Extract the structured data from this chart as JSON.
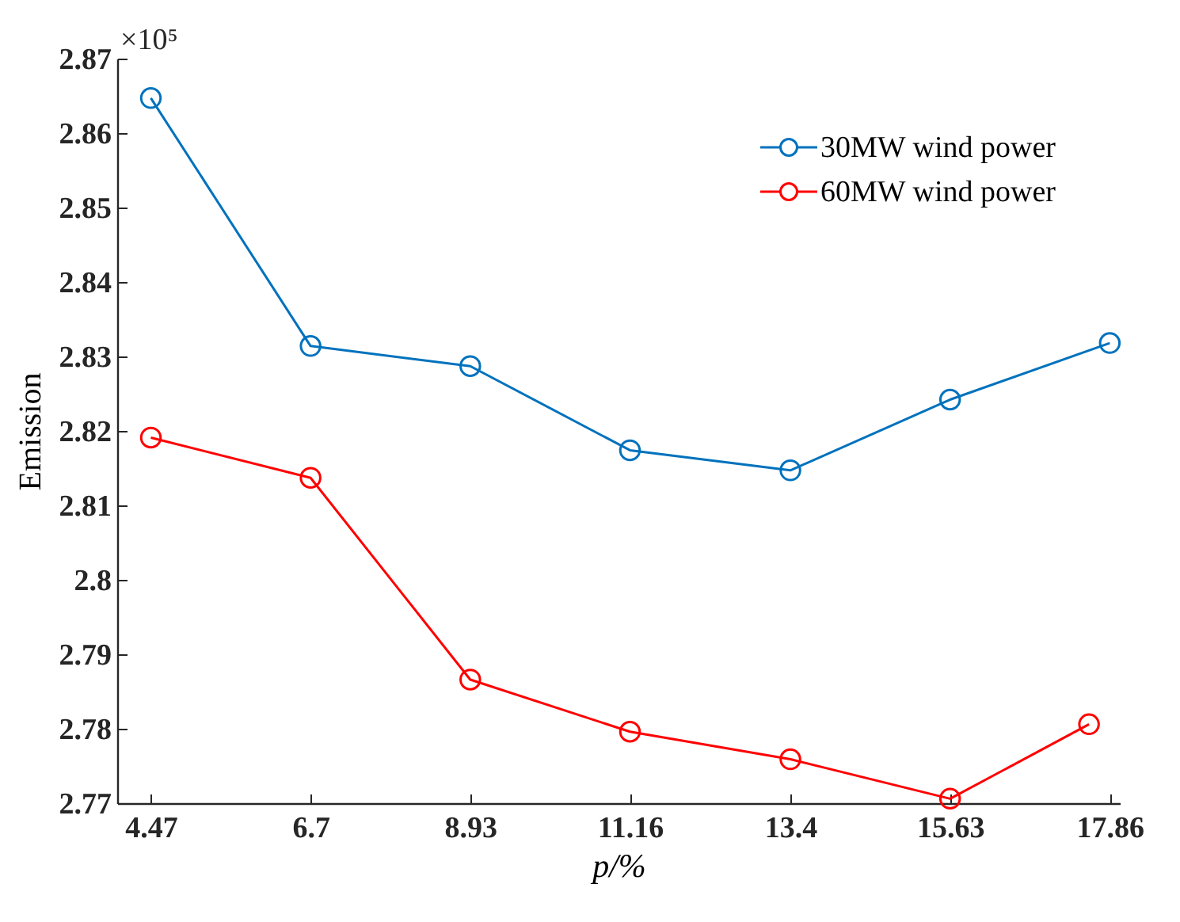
{
  "chart_data": {
    "type": "line",
    "xlabel": "p/%",
    "ylabel": "Emission",
    "annotations": [
      "×10⁵"
    ],
    "x": [
      4.47,
      6.7,
      8.93,
      11.16,
      13.4,
      15.63,
      17.86
    ],
    "series": [
      {
        "name": "30MW wind power",
        "color": "#0072bd",
        "values": [
          2.8647,
          2.8314,
          2.8287,
          2.8174,
          2.8147,
          2.8242,
          2.8318
        ]
      },
      {
        "name": "60MW wind power",
        "color": "#ff0000",
        "x": [
          4.47,
          6.7,
          8.93,
          11.16,
          13.4,
          15.63,
          17.57
        ],
        "values": [
          2.8191,
          2.8137,
          2.7866,
          2.7796,
          2.7759,
          2.7706,
          2.7806
        ]
      }
    ],
    "xlim": [
      4.0,
      18.0
    ],
    "xticks": [
      4.47,
      6.7,
      8.93,
      11.16,
      13.4,
      15.63,
      17.86
    ],
    "ylim": [
      2.77,
      2.87
    ],
    "yticks": [
      2.77,
      2.78,
      2.79,
      2.8,
      2.81,
      2.82,
      2.83,
      2.84,
      2.85,
      2.86,
      2.87
    ],
    "legend": "top right",
    "marker": "circle",
    "line_style": "solid",
    "grid": false
  }
}
